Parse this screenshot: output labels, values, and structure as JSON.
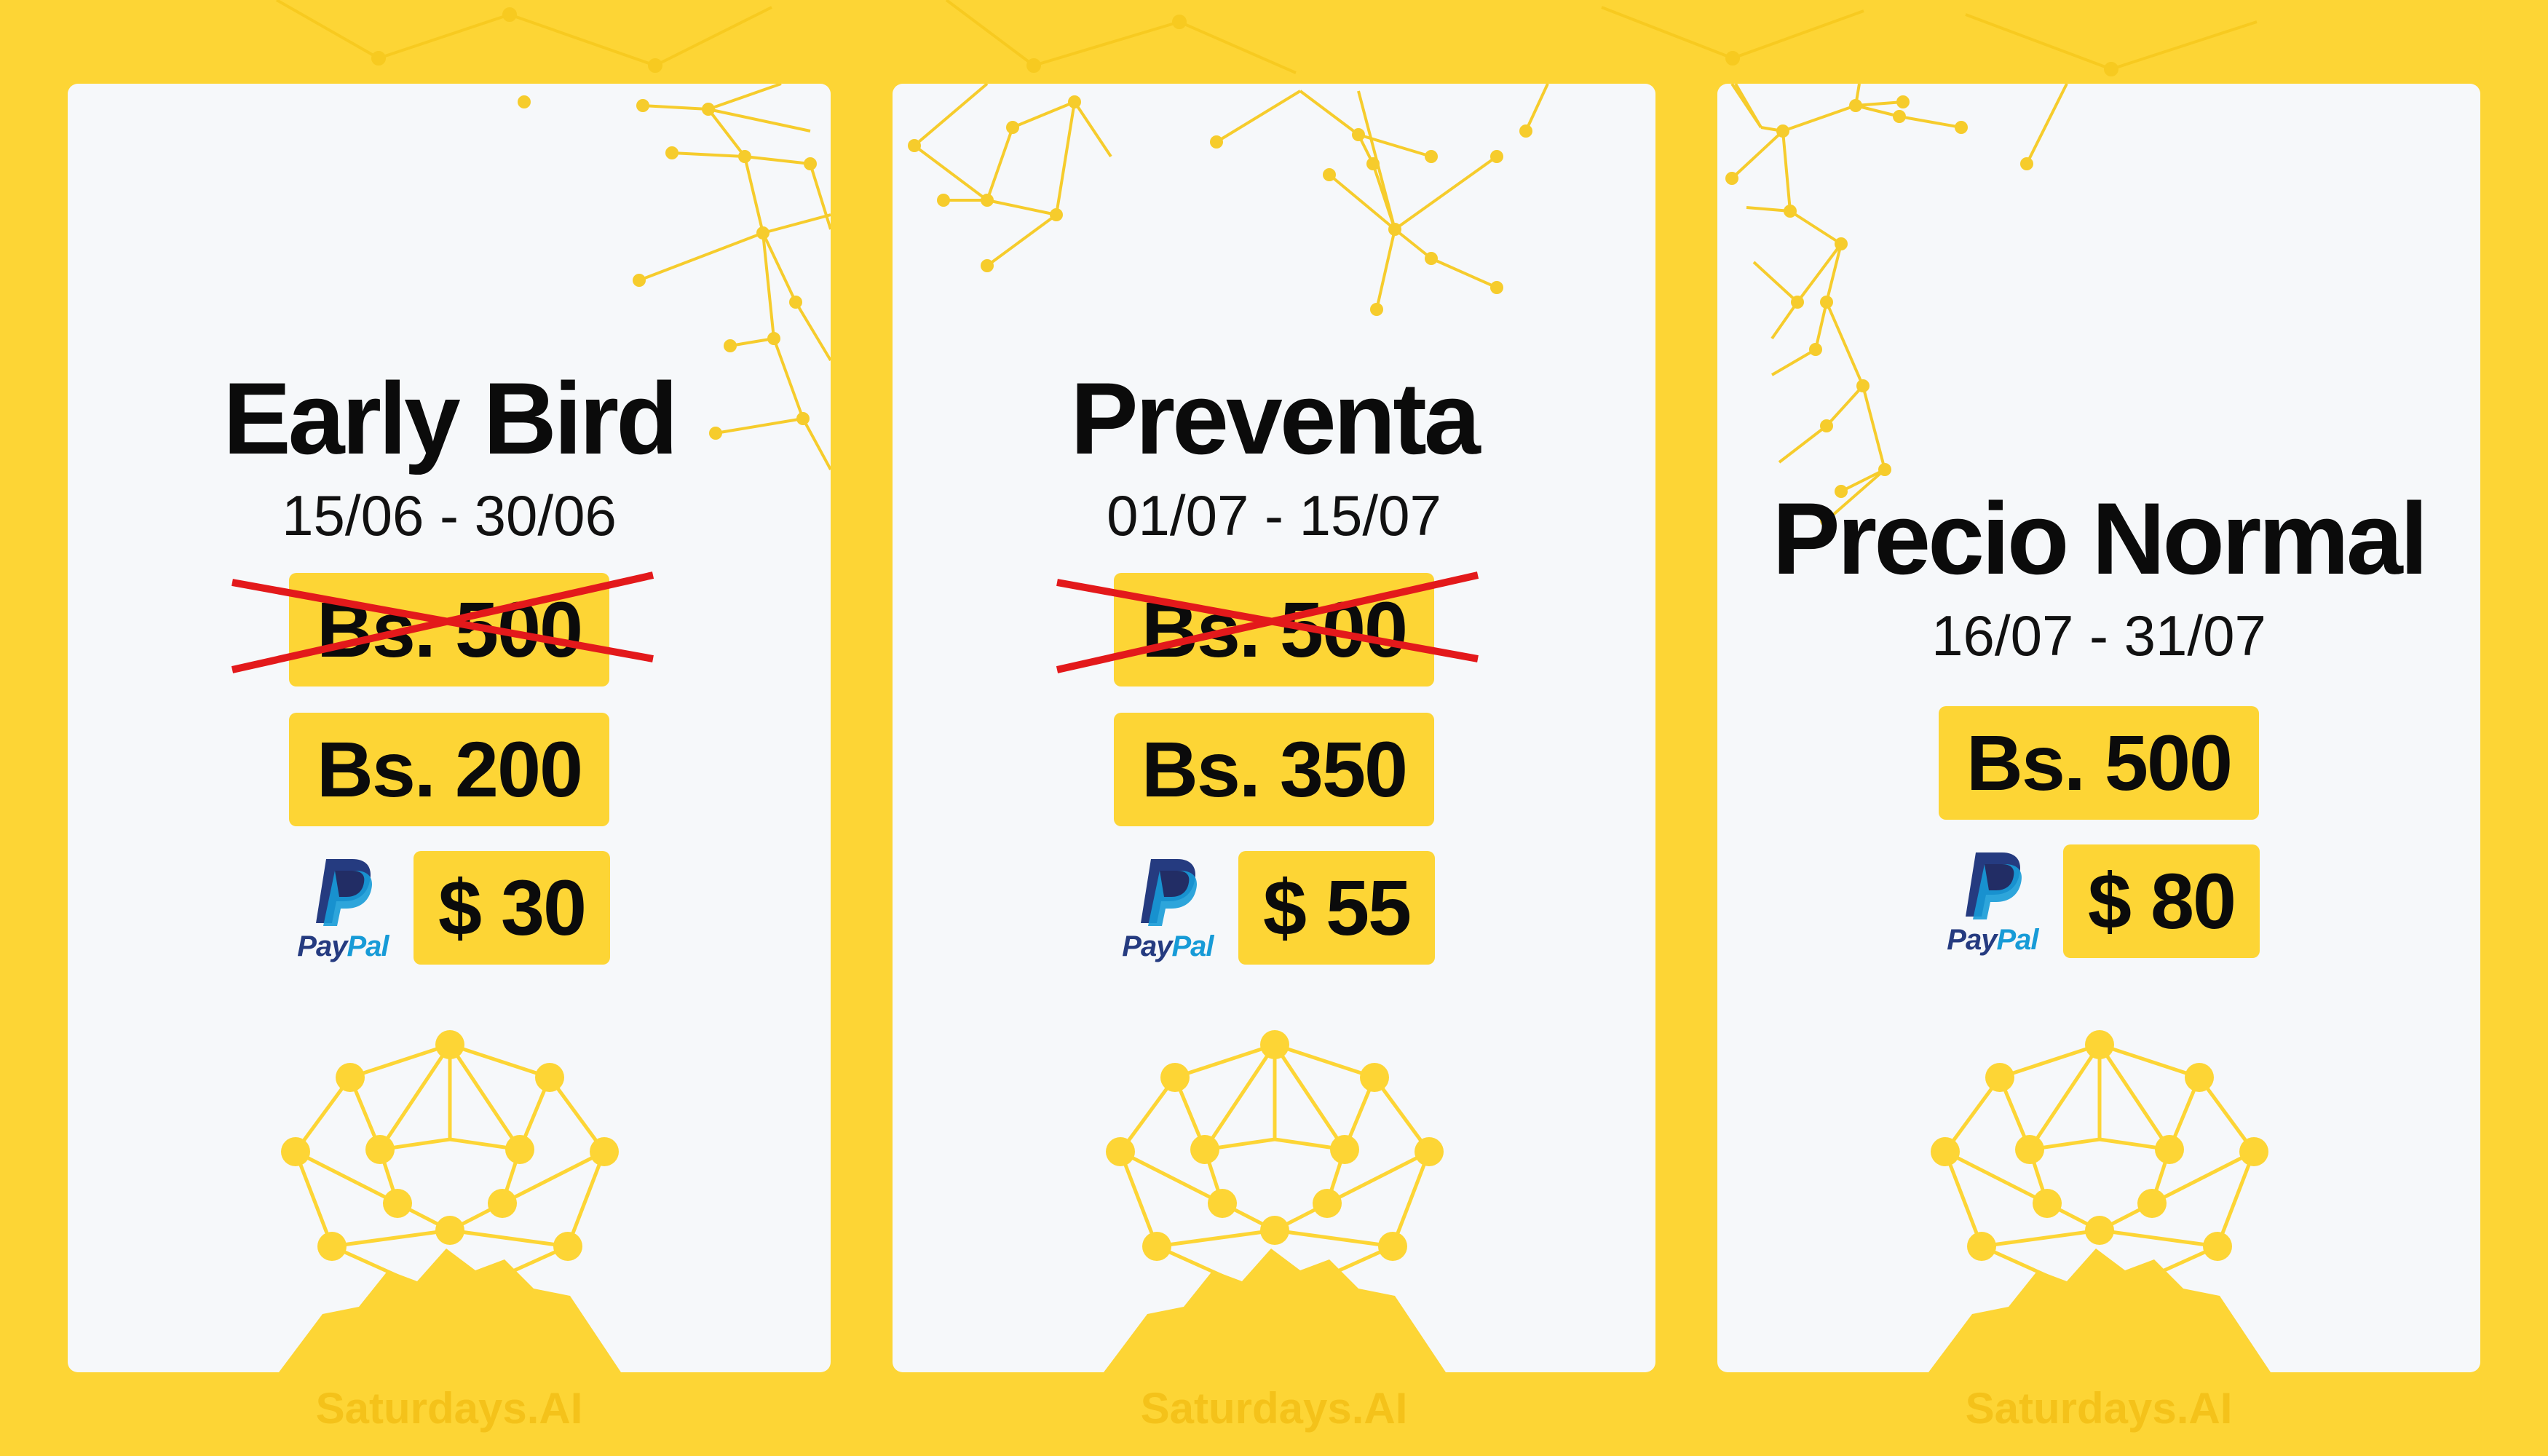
{
  "colors": {
    "background": "#FDD535",
    "card": "#F6F8FA",
    "accent": "#FDD535",
    "network": "#F3CC2A",
    "strike": "#E3191B",
    "text": "#0b0b0b",
    "paypal_dark": "#253B80",
    "paypal_light": "#179BD7"
  },
  "cards": [
    {
      "title": "Early Bird",
      "dates": "15/06 - 30/06",
      "old_price": "Bs. 500",
      "price_bs": "Bs. 200",
      "paypal_icon": "paypal-icon",
      "paypal_pay": "Pay",
      "paypal_pal": "Pal",
      "price_usd": "$ 30",
      "footer": "Saturdays.AI"
    },
    {
      "title": "Preventa",
      "dates": "01/07 - 15/07",
      "old_price": "Bs. 500",
      "price_bs": "Bs. 350",
      "paypal_icon": "paypal-icon",
      "paypal_pay": "Pay",
      "paypal_pal": "Pal",
      "price_usd": "$ 55",
      "footer": "Saturdays.AI"
    },
    {
      "title": "Precio Normal",
      "dates": "16/07 - 31/07",
      "price_bs": "Bs. 500",
      "paypal_icon": "paypal-icon",
      "paypal_pay": "Pay",
      "paypal_pal": "Pal",
      "price_usd": "$ 80",
      "footer": "Saturdays.AI"
    }
  ]
}
